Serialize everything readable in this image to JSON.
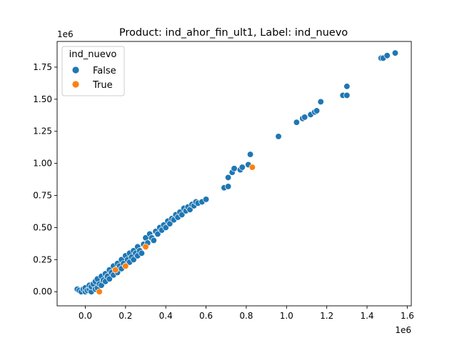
{
  "chart_data": {
    "type": "scatter",
    "title": "Product: ind_ahor_fin_ult1, Label: ind_nuevo",
    "xlabel": "",
    "ylabel": "",
    "x_offset_label": "1e6",
    "y_offset_label": "1e6",
    "xlim": [
      -0.14,
      1.62
    ],
    "ylim": [
      -0.11,
      1.95
    ],
    "x_ticks": [
      0.0,
      0.2,
      0.4,
      0.6,
      0.8,
      1.0,
      1.2,
      1.4,
      1.6
    ],
    "x_tick_labels": [
      "0.0",
      "0.2",
      "0.4",
      "0.6",
      "0.8",
      "1.0",
      "1.2",
      "1.4",
      "1.6"
    ],
    "y_ticks": [
      0.0,
      0.25,
      0.5,
      0.75,
      1.0,
      1.25,
      1.5,
      1.75
    ],
    "y_tick_labels": [
      "0.00",
      "0.25",
      "0.50",
      "0.75",
      "1.00",
      "1.25",
      "1.50",
      "1.75"
    ],
    "grid": false,
    "legend": {
      "title": "ind_nuevo",
      "placement": "top-left"
    },
    "series": [
      {
        "name": "False",
        "color": "#1f77b4",
        "points": [
          [
            -0.04,
            0.02
          ],
          [
            -0.03,
            0.01
          ],
          [
            -0.02,
            0.0
          ],
          [
            -0.01,
            0.02
          ],
          [
            0.0,
            0.0
          ],
          [
            0.0,
            0.03
          ],
          [
            0.01,
            0.01
          ],
          [
            0.02,
            0.02
          ],
          [
            0.02,
            0.05
          ],
          [
            0.03,
            0.0
          ],
          [
            0.03,
            0.04
          ],
          [
            0.04,
            0.06
          ],
          [
            0.05,
            0.02
          ],
          [
            0.05,
            0.08
          ],
          [
            0.06,
            0.03
          ],
          [
            0.06,
            0.1
          ],
          [
            0.07,
            0.06
          ],
          [
            0.08,
            0.05
          ],
          [
            0.08,
            0.12
          ],
          [
            0.09,
            0.09
          ],
          [
            0.1,
            0.08
          ],
          [
            0.1,
            0.14
          ],
          [
            0.11,
            0.12
          ],
          [
            0.12,
            0.1
          ],
          [
            0.12,
            0.17
          ],
          [
            0.13,
            0.15
          ],
          [
            0.14,
            0.13
          ],
          [
            0.14,
            0.2
          ],
          [
            0.15,
            0.17
          ],
          [
            0.16,
            0.15
          ],
          [
            0.16,
            0.22
          ],
          [
            0.17,
            0.2
          ],
          [
            0.18,
            0.18
          ],
          [
            0.18,
            0.25
          ],
          [
            0.19,
            0.22
          ],
          [
            0.2,
            0.2
          ],
          [
            0.2,
            0.28
          ],
          [
            0.21,
            0.25
          ],
          [
            0.22,
            0.23
          ],
          [
            0.22,
            0.3
          ],
          [
            0.23,
            0.27
          ],
          [
            0.24,
            0.25
          ],
          [
            0.24,
            0.32
          ],
          [
            0.25,
            0.3
          ],
          [
            0.26,
            0.28
          ],
          [
            0.26,
            0.35
          ],
          [
            0.27,
            0.32
          ],
          [
            0.28,
            0.3
          ],
          [
            0.29,
            0.37
          ],
          [
            0.3,
            0.35
          ],
          [
            0.3,
            0.42
          ],
          [
            0.31,
            0.38
          ],
          [
            0.32,
            0.45
          ],
          [
            0.33,
            0.42
          ],
          [
            0.34,
            0.4
          ],
          [
            0.35,
            0.47
          ],
          [
            0.36,
            0.45
          ],
          [
            0.37,
            0.5
          ],
          [
            0.38,
            0.48
          ],
          [
            0.39,
            0.52
          ],
          [
            0.4,
            0.5
          ],
          [
            0.41,
            0.55
          ],
          [
            0.42,
            0.53
          ],
          [
            0.43,
            0.57
          ],
          [
            0.44,
            0.56
          ],
          [
            0.45,
            0.6
          ],
          [
            0.46,
            0.58
          ],
          [
            0.47,
            0.62
          ],
          [
            0.48,
            0.6
          ],
          [
            0.49,
            0.65
          ],
          [
            0.5,
            0.63
          ],
          [
            0.51,
            0.66
          ],
          [
            0.52,
            0.64
          ],
          [
            0.53,
            0.68
          ],
          [
            0.54,
            0.67
          ],
          [
            0.55,
            0.7
          ],
          [
            0.56,
            0.69
          ],
          [
            0.58,
            0.7
          ],
          [
            0.6,
            0.72
          ],
          [
            0.69,
            0.81
          ],
          [
            0.71,
            0.82
          ],
          [
            0.71,
            0.89
          ],
          [
            0.73,
            0.93
          ],
          [
            0.74,
            0.96
          ],
          [
            0.77,
            0.95
          ],
          [
            0.78,
            0.97
          ],
          [
            0.81,
            0.99
          ],
          [
            0.82,
            1.07
          ],
          [
            0.96,
            1.21
          ],
          [
            1.05,
            1.32
          ],
          [
            1.08,
            1.35
          ],
          [
            1.09,
            1.36
          ],
          [
            1.12,
            1.38
          ],
          [
            1.14,
            1.4
          ],
          [
            1.15,
            1.41
          ],
          [
            1.17,
            1.48
          ],
          [
            1.28,
            1.53
          ],
          [
            1.3,
            1.53
          ],
          [
            1.3,
            1.6
          ],
          [
            1.47,
            1.82
          ],
          [
            1.48,
            1.82
          ],
          [
            1.5,
            1.84
          ],
          [
            1.54,
            1.86
          ]
        ]
      },
      {
        "name": "True",
        "color": "#ff7f0e",
        "points": [
          [
            0.07,
            0.0
          ],
          [
            0.15,
            0.17
          ],
          [
            0.2,
            0.2
          ],
          [
            0.3,
            0.35
          ],
          [
            0.83,
            0.97
          ]
        ]
      }
    ]
  }
}
